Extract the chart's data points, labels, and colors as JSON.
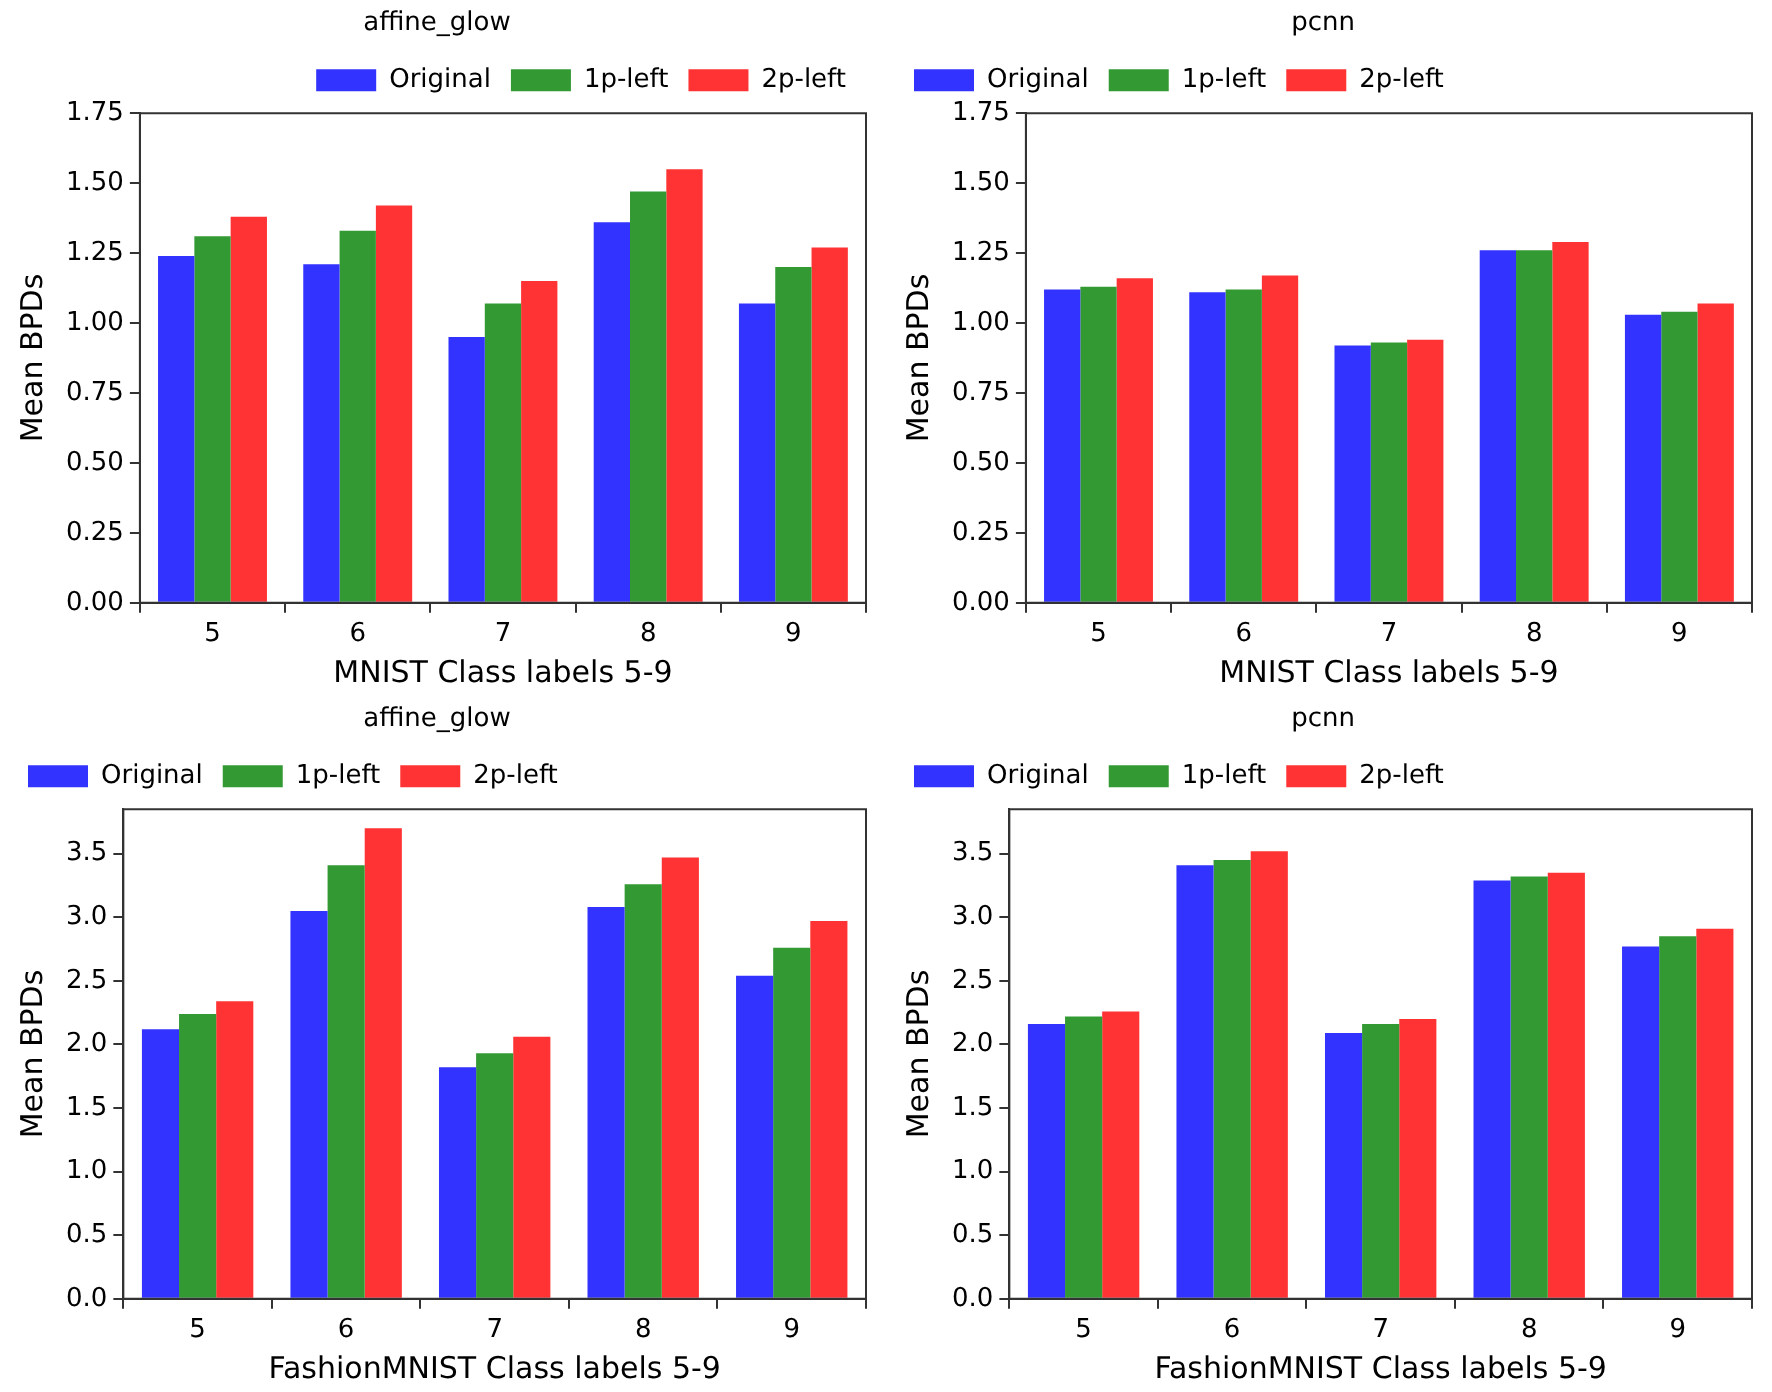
{
  "chart_data": [
    {
      "type": "bar",
      "title": "affine_glow",
      "xlabel": "MNIST Class labels 5-9",
      "ylabel": "Mean BPDs",
      "categories": [
        "5",
        "6",
        "7",
        "8",
        "9"
      ],
      "series": [
        {
          "name": "Original",
          "color": "#3333ff",
          "values": [
            1.24,
            1.21,
            0.95,
            1.36,
            1.07
          ]
        },
        {
          "name": "1p-left",
          "color": "#339933",
          "values": [
            1.31,
            1.33,
            1.07,
            1.47,
            1.2
          ]
        },
        {
          "name": "2p-left",
          "color": "#ff3333",
          "values": [
            1.38,
            1.42,
            1.15,
            1.55,
            1.27
          ]
        }
      ],
      "ylim": [
        0,
        1.75
      ],
      "yticks": [
        {
          "value": 0,
          "label": "0.00"
        },
        {
          "value": 0.25,
          "label": "0.25"
        },
        {
          "value": 0.5,
          "label": "0.50"
        },
        {
          "value": 0.75,
          "label": "0.75"
        },
        {
          "value": 1,
          "label": "1.00"
        },
        {
          "value": 1.25,
          "label": "1.25"
        },
        {
          "value": 1.5,
          "label": "1.50"
        },
        {
          "value": 1.75,
          "label": "1.75"
        }
      ],
      "legend": "top right"
    },
    {
      "type": "bar",
      "title": "pcnn",
      "xlabel": "MNIST Class labels 5-9",
      "ylabel": "Mean BPDs",
      "categories": [
        "5",
        "6",
        "7",
        "8",
        "9"
      ],
      "series": [
        {
          "name": "Original",
          "color": "#3333ff",
          "values": [
            1.12,
            1.11,
            0.92,
            1.26,
            1.03
          ]
        },
        {
          "name": "1p-left",
          "color": "#339933",
          "values": [
            1.13,
            1.12,
            0.93,
            1.26,
            1.04
          ]
        },
        {
          "name": "2p-left",
          "color": "#ff3333",
          "values": [
            1.16,
            1.17,
            0.94,
            1.29,
            1.07
          ]
        }
      ],
      "ylim": [
        0,
        1.75
      ],
      "yticks": [
        {
          "value": 0,
          "label": "0.00"
        },
        {
          "value": 0.25,
          "label": "0.25"
        },
        {
          "value": 0.5,
          "label": "0.50"
        },
        {
          "value": 0.75,
          "label": "0.75"
        },
        {
          "value": 1,
          "label": "1.00"
        },
        {
          "value": 1.25,
          "label": "1.25"
        },
        {
          "value": 1.5,
          "label": "1.50"
        },
        {
          "value": 1.75,
          "label": "1.75"
        }
      ],
      "legend": "top left"
    },
    {
      "type": "bar",
      "title": "affine_glow",
      "xlabel": "FashionMNIST Class labels 5-9",
      "ylabel": "Mean BPDs",
      "categories": [
        "5",
        "6",
        "7",
        "8",
        "9"
      ],
      "series": [
        {
          "name": "Original",
          "color": "#3333ff",
          "values": [
            2.12,
            3.05,
            1.82,
            3.08,
            2.54
          ]
        },
        {
          "name": "1p-left",
          "color": "#339933",
          "values": [
            2.24,
            3.41,
            1.93,
            3.26,
            2.76
          ]
        },
        {
          "name": "2p-left",
          "color": "#ff3333",
          "values": [
            2.34,
            3.7,
            2.06,
            3.47,
            2.97
          ]
        }
      ],
      "ylim": [
        0,
        3.85
      ],
      "yticks": [
        {
          "value": 0,
          "label": "0.0"
        },
        {
          "value": 0.5,
          "label": "0.5"
        },
        {
          "value": 1,
          "label": "1.0"
        },
        {
          "value": 1.5,
          "label": "1.5"
        },
        {
          "value": 2,
          "label": "2.0"
        },
        {
          "value": 2.5,
          "label": "2.5"
        },
        {
          "value": 3,
          "label": "3.0"
        },
        {
          "value": 3.5,
          "label": "3.5"
        }
      ],
      "legend": "top left"
    },
    {
      "type": "bar",
      "title": "pcnn",
      "xlabel": "FashionMNIST Class labels 5-9",
      "ylabel": "Mean BPDs",
      "categories": [
        "5",
        "6",
        "7",
        "8",
        "9"
      ],
      "series": [
        {
          "name": "Original",
          "color": "#3333ff",
          "values": [
            2.16,
            3.41,
            2.09,
            3.29,
            2.77
          ]
        },
        {
          "name": "1p-left",
          "color": "#339933",
          "values": [
            2.22,
            3.45,
            2.16,
            3.32,
            2.85
          ]
        },
        {
          "name": "2p-left",
          "color": "#ff3333",
          "values": [
            2.26,
            3.52,
            2.2,
            3.35,
            2.91
          ]
        }
      ],
      "ylim": [
        0,
        3.85
      ],
      "yticks": [
        {
          "value": 0,
          "label": "0.0"
        },
        {
          "value": 0.5,
          "label": "0.5"
        },
        {
          "value": 1,
          "label": "1.0"
        },
        {
          "value": 1.5,
          "label": "1.5"
        },
        {
          "value": 2,
          "label": "2.0"
        },
        {
          "value": 2.5,
          "label": "2.5"
        },
        {
          "value": 3,
          "label": "3.0"
        },
        {
          "value": 3.5,
          "label": "3.5"
        }
      ],
      "legend": "top left"
    }
  ]
}
